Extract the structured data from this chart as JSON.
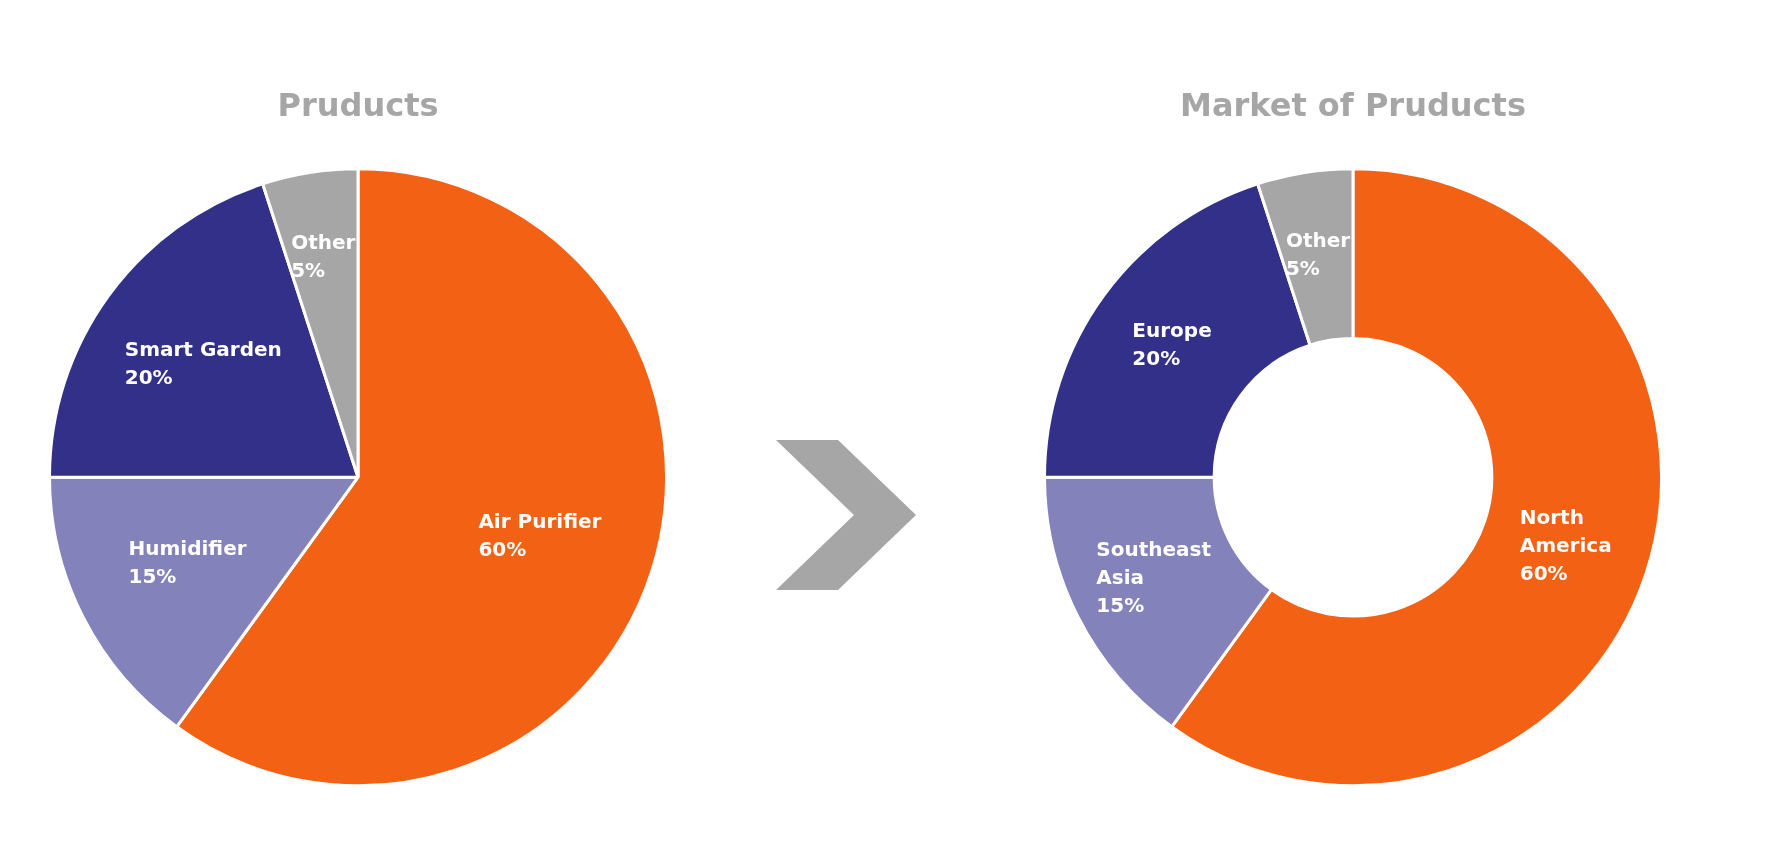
{
  "chart_data": [
    {
      "type": "pie",
      "title": "Pruducts",
      "categories": [
        "Air Purifier",
        "Humidifier",
        "Smart Garden",
        "Other"
      ],
      "values": [
        60,
        15,
        20,
        5
      ],
      "colors": [
        "#f26114",
        "#8482ba",
        "#33308a",
        "#a6a6a6"
      ],
      "value_labels": [
        "60%",
        "15%",
        "20%",
        "5%"
      ],
      "legend": false
    },
    {
      "type": "donut",
      "title": "Market of Pruducts",
      "categories": [
        "North America",
        "Southeast Asia",
        "Europe",
        "Other"
      ],
      "values": [
        60,
        15,
        20,
        5
      ],
      "colors": [
        "#f26114",
        "#8482ba",
        "#33308a",
        "#a6a6a6"
      ],
      "value_labels": [
        "60%",
        "15%",
        "20%",
        "5%"
      ],
      "legend": false
    }
  ]
}
